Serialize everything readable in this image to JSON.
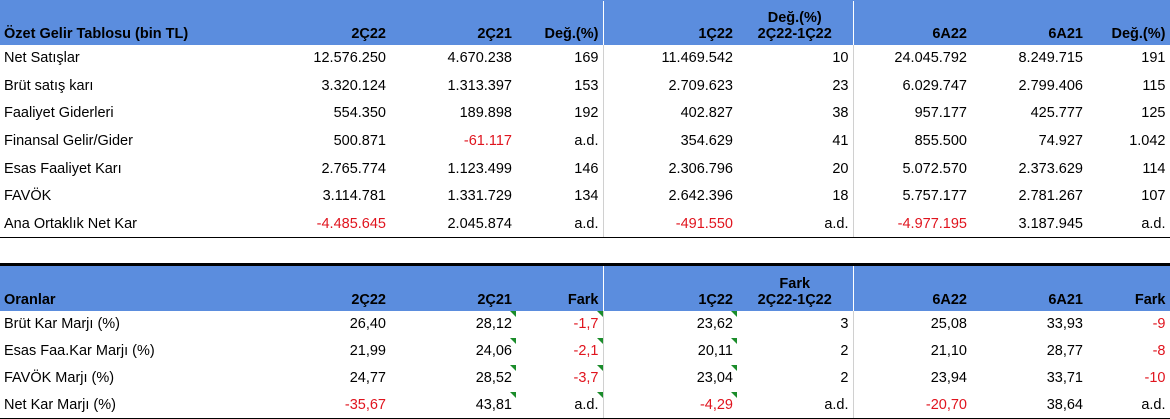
{
  "income": {
    "headers": [
      "Özet Gelir Tablosu (bin TL)",
      "2Ç22",
      "2Ç21",
      "Değ.(%)",
      "1Ç22",
      "Değ.(%)\n2Ç22-1Ç22",
      "6A22",
      "6A21",
      "Değ.(%)"
    ],
    "rows": [
      [
        "Net Satışlar",
        "12.576.250",
        "4.670.238",
        "169",
        "11.469.542",
        "10",
        "24.045.792",
        "8.249.715",
        "191"
      ],
      [
        "Brüt satış karı",
        "3.320.124",
        "1.313.397",
        "153",
        "2.709.623",
        "23",
        "6.029.747",
        "2.799.406",
        "115"
      ],
      [
        "Faaliyet Giderleri",
        "554.350",
        "189.898",
        "192",
        "402.827",
        "38",
        "957.177",
        "425.777",
        "125"
      ],
      [
        "Finansal Gelir/Gider",
        "500.871",
        "-61.117",
        "a.d.",
        "354.629",
        "41",
        "855.500",
        "74.927",
        "1.042"
      ],
      [
        "Esas Faaliyet Karı",
        "2.765.774",
        "1.123.499",
        "146",
        "2.306.796",
        "20",
        "5.072.570",
        "2.373.629",
        "114"
      ],
      [
        "FAVÖK",
        "3.114.781",
        "1.331.729",
        "134",
        "2.642.396",
        "18",
        "5.757.177",
        "2.781.267",
        "107"
      ],
      [
        "Ana Ortaklık Net Kar",
        "-4.485.645",
        "2.045.874",
        "a.d.",
        "-491.550",
        "a.d.",
        "-4.977.195",
        "3.187.945",
        "a.d."
      ]
    ]
  },
  "ratios": {
    "headers": [
      "Oranlar",
      "2Ç22",
      "2Ç21",
      "Fark",
      "1Ç22",
      "Fark\n2Ç22-1Ç22",
      "6A22",
      "6A21",
      "Fark"
    ],
    "rows": [
      [
        "Brüt Kar Marjı (%)",
        "26,40",
        "28,12",
        "-1,7",
        "23,62",
        "3",
        "25,08",
        "33,93",
        "-9"
      ],
      [
        "Esas Faa.Kar Marjı (%)",
        "21,99",
        "24,06",
        "-2,1",
        "20,11",
        "2",
        "21,10",
        "28,77",
        "-8"
      ],
      [
        "FAVÖK Marjı (%)",
        "24,77",
        "28,52",
        "-3,7",
        "23,04",
        "2",
        "23,94",
        "33,71",
        "-10"
      ],
      [
        "Net Kar Marjı (%)",
        "-35,67",
        "43,81",
        "a.d.",
        "-4,29",
        "a.d.",
        "-20,70",
        "38,64",
        "a.d."
      ]
    ]
  },
  "colors": {
    "header_bg": "#5b8dde",
    "negative": "#e0141e",
    "comment_marker": "#1a8c2a"
  }
}
